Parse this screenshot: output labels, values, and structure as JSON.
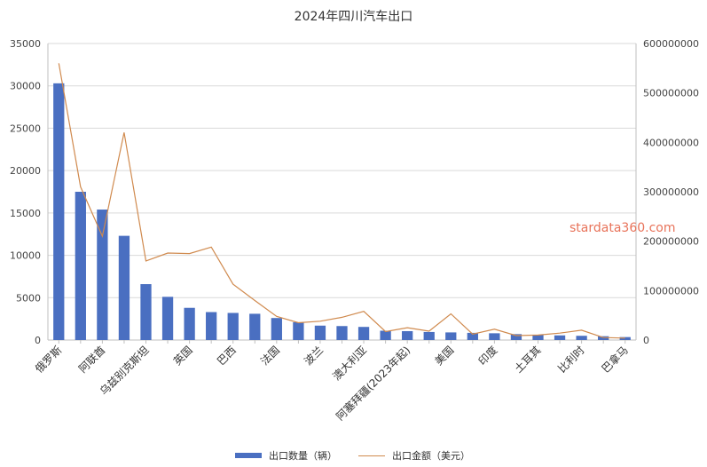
{
  "chart_data": {
    "type": "bar",
    "title": "2024年四川汽车出口",
    "categories": [
      "俄罗斯",
      "",
      "阿联酋",
      "",
      "乌兹别克斯坦",
      "",
      "英国",
      "",
      "巴西",
      "",
      "法国",
      "",
      "波兰",
      "",
      "澳大利亚",
      "",
      "阿塞拜疆(2023年起)",
      "",
      "美国",
      "",
      "印度",
      "",
      "土耳其",
      "",
      "比利时",
      "",
      "巴拿马"
    ],
    "series": [
      {
        "name": "出口数量（辆）",
        "type": "bar",
        "axis": "left",
        "color": "#4a6fc1",
        "values": [
          30300,
          17500,
          15400,
          12300,
          6600,
          5100,
          3800,
          3300,
          3200,
          3100,
          2600,
          2100,
          1700,
          1650,
          1550,
          1100,
          1050,
          950,
          900,
          850,
          800,
          700,
          600,
          550,
          500,
          450,
          350
        ]
      },
      {
        "name": "出口金额（美元）",
        "type": "line",
        "axis": "right",
        "color": "#d08a4e",
        "values": [
          560000000,
          310000000,
          210000000,
          420000000,
          160000000,
          176000000,
          175000000,
          188000000,
          113000000,
          80000000,
          48000000,
          35000000,
          38000000,
          46000000,
          58000000,
          17000000,
          25000000,
          18000000,
          53000000,
          12000000,
          22000000,
          9000000,
          10000000,
          14000000,
          20000000,
          5000000,
          4000000
        ]
      }
    ],
    "yleft": {
      "min": 0,
      "max": 35000,
      "ticks": [
        "0",
        "5000",
        "10000",
        "15000",
        "20000",
        "25000",
        "30000",
        "35000"
      ]
    },
    "yright": {
      "min": 0,
      "max": 600000000,
      "ticks": [
        "0",
        "100000000",
        "200000000",
        "300000000",
        "400000000",
        "500000000",
        "600000000"
      ]
    },
    "grid": true,
    "legend_position": "bottom"
  },
  "watermark": "stardata360.com"
}
